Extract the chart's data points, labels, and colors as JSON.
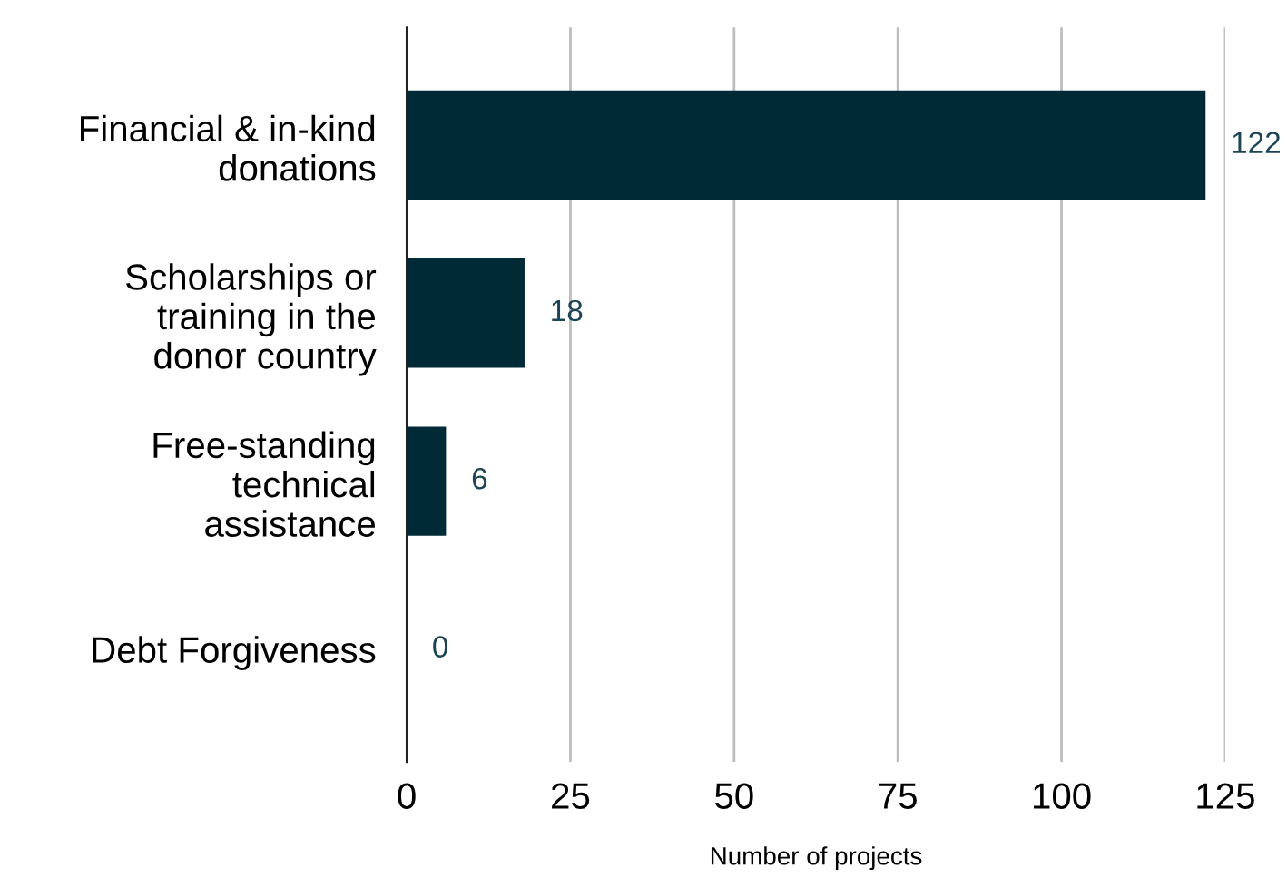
{
  "chart_data": {
    "type": "bar",
    "orientation": "horizontal",
    "categories": [
      "Financial & in-kind\ndonations",
      "Scholarships or\ntraining in the\ndonor country",
      "Free-standing\ntechnical\nassistance",
      "Debt Forgiveness"
    ],
    "values": [
      122,
      18,
      6,
      0
    ],
    "color": "#002b36",
    "xlim": [
      0,
      125
    ],
    "xticks": [
      0,
      25,
      50,
      75,
      100,
      125
    ],
    "xlabel": "Number of projects",
    "grid": "x",
    "data_labels": true
  }
}
